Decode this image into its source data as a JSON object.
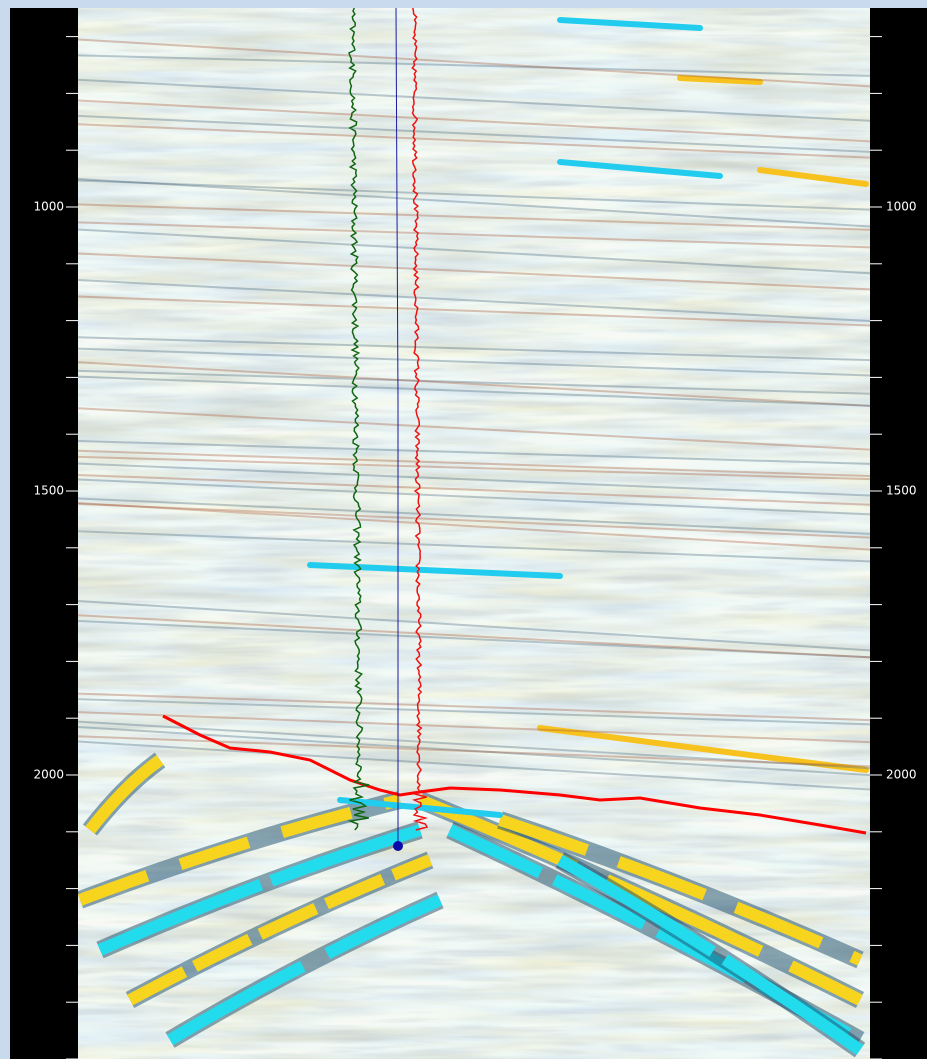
{
  "depth_axis": {
    "left_labels": [
      "1000",
      "1500",
      "2000"
    ],
    "right_labels": [
      "1000",
      "1500",
      "2000"
    ]
  }
}
